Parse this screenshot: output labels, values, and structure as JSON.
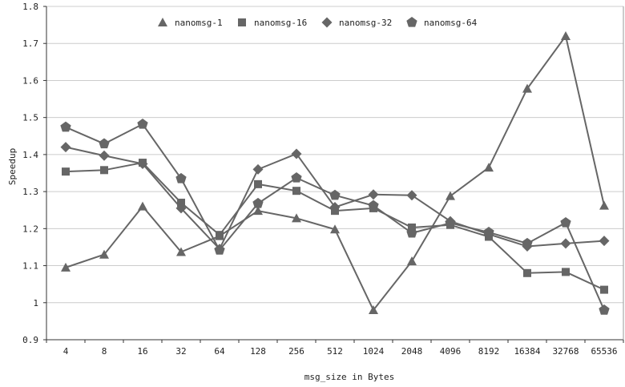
{
  "chart_data": {
    "type": "line",
    "title": "",
    "xlabel": "msg_size in Bytes",
    "ylabel": "Speedup",
    "categories": [
      "4",
      "8",
      "16",
      "32",
      "64",
      "128",
      "256",
      "512",
      "1024",
      "2048",
      "4096",
      "8192",
      "16384",
      "32768",
      "65536"
    ],
    "ylim": [
      0.9,
      1.8
    ],
    "yticks": [
      0.9,
      1.0,
      1.1,
      1.2,
      1.3,
      1.4,
      1.5,
      1.6,
      1.7,
      1.8
    ],
    "ytick_labels": [
      "0.9",
      "1",
      "1.1",
      "1.2",
      "1.3",
      "1.4",
      "1.5",
      "1.6",
      "1.7",
      "1.8"
    ],
    "grid": "horizontal",
    "legend_position": "top-center",
    "series_color": "#666666",
    "series": [
      {
        "name": "nanomsg-1",
        "marker": "triangle",
        "values": [
          1.095,
          1.13,
          1.26,
          1.137,
          1.18,
          1.248,
          1.228,
          1.198,
          0.98,
          1.112,
          1.288,
          1.365,
          1.578,
          1.72,
          1.262
        ]
      },
      {
        "name": "nanomsg-16",
        "marker": "square",
        "values": [
          1.354,
          1.358,
          1.378,
          1.27,
          1.183,
          1.32,
          1.302,
          1.248,
          1.255,
          1.203,
          1.21,
          1.178,
          1.08,
          1.083,
          1.035
        ]
      },
      {
        "name": "nanomsg-32",
        "marker": "diamond",
        "values": [
          1.42,
          1.397,
          1.375,
          1.255,
          1.145,
          1.36,
          1.402,
          1.258,
          1.292,
          1.29,
          1.22,
          1.185,
          1.152,
          1.16,
          1.167
        ]
      },
      {
        "name": "nanomsg-64",
        "marker": "pentagon",
        "values": [
          1.474,
          1.429,
          1.482,
          1.335,
          1.142,
          1.268,
          1.337,
          1.29,
          1.262,
          1.188,
          1.215,
          1.19,
          1.16,
          1.216,
          0.98
        ]
      }
    ]
  }
}
